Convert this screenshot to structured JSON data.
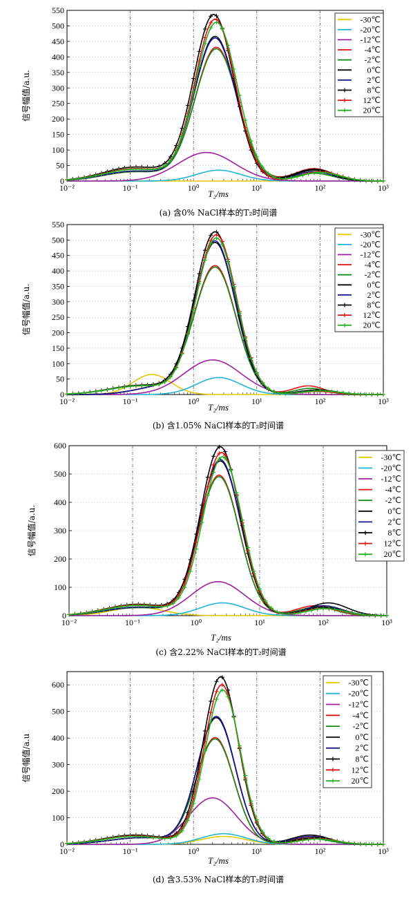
{
  "chart_data": [
    {
      "type": "line",
      "caption": "(a) 含0% NaCl样本的T₂时间谱",
      "ylabel": "信号幅值/a.u.",
      "xlabel": "T₂/ms",
      "xscale": "log",
      "xlim": [
        0.01,
        1000
      ],
      "ylim": [
        0,
        550
      ],
      "yticks": [
        0,
        50,
        100,
        150,
        200,
        250,
        300,
        350,
        400,
        450,
        500,
        550
      ],
      "xtick_labels": [
        "10⁻²",
        "10⁻¹",
        "10⁰",
        "10¹",
        "10²",
        "10³"
      ],
      "series": [
        {
          "name": "-30℃",
          "color": "#e6c800",
          "curves": []
        },
        {
          "name": "-20℃",
          "color": "#1fb3d6",
          "curves": [
            [
              2.5,
              35,
              0.35
            ]
          ]
        },
        {
          "name": "-12℃",
          "color": "#a01ea0",
          "curves": [
            [
              1.6,
              92,
              0.45
            ]
          ]
        },
        {
          "name": "-4℃",
          "color": "#e01010",
          "curves": [
            [
              2.3,
              430,
              0.34
            ],
            [
              0.12,
              30,
              0.5
            ],
            [
              80,
              40,
              0.3
            ]
          ]
        },
        {
          "name": "-2℃",
          "color": "#1a8a1a",
          "curves": [
            [
              2.3,
              425,
              0.34
            ],
            [
              0.12,
              30,
              0.5
            ],
            [
              80,
              25,
              0.3
            ]
          ]
        },
        {
          "name": "0℃",
          "color": "#000000",
          "curves": [
            [
              2.2,
              465,
              0.33
            ],
            [
              0.12,
              32,
              0.5
            ],
            [
              80,
              38,
              0.3
            ]
          ]
        },
        {
          "name": "2℃",
          "color": "#14148c",
          "curves": [
            [
              2.2,
              460,
              0.33
            ],
            [
              0.12,
              32,
              0.5
            ],
            [
              80,
              30,
              0.3
            ]
          ]
        },
        {
          "name": "8℃",
          "color": "#000000",
          "curves": [
            [
              2.1,
              535,
              0.32
            ],
            [
              0.12,
              45,
              0.5
            ],
            [
              80,
              35,
              0.3
            ]
          ]
        },
        {
          "name": "12℃",
          "color": "#e01010",
          "curves": [
            [
              2.2,
              520,
              0.32
            ],
            [
              0.12,
              40,
              0.5
            ],
            [
              100,
              30,
              0.3
            ]
          ]
        },
        {
          "name": "20℃",
          "color": "#22b022",
          "curves": [
            [
              2.3,
              510,
              0.33
            ],
            [
              0.12,
              38,
              0.5
            ],
            [
              100,
              28,
              0.3
            ]
          ]
        }
      ]
    },
    {
      "type": "line",
      "caption": "(b) 含1.05% NaCl样本的T₂时间谱",
      "ylabel": "信号幅值/a.u.",
      "xlabel": "T₂/ms",
      "xscale": "log",
      "xlim": [
        0.01,
        1000
      ],
      "ylim": [
        0,
        550
      ],
      "yticks": [
        0,
        50,
        100,
        150,
        200,
        250,
        300,
        350,
        400,
        450,
        500,
        550
      ],
      "xtick_labels": [
        "10⁻²",
        "10⁻¹",
        "10⁰",
        "10¹",
        "10²",
        "10³"
      ],
      "series": [
        {
          "name": "-30℃",
          "color": "#e6c800",
          "curves": [
            [
              0.22,
              65,
              0.3
            ]
          ]
        },
        {
          "name": "-20℃",
          "color": "#1fb3d6",
          "curves": [
            [
              2.5,
              55,
              0.35
            ]
          ]
        },
        {
          "name": "-12℃",
          "color": "#a01ea0",
          "curves": [
            [
              2.0,
              112,
              0.45
            ]
          ]
        },
        {
          "name": "-4℃",
          "color": "#e01010",
          "curves": [
            [
              2.2,
              415,
              0.33
            ],
            [
              0.3,
              25,
              0.4
            ],
            [
              65,
              28,
              0.25
            ]
          ]
        },
        {
          "name": "-2℃",
          "color": "#1a8a1a",
          "curves": [
            [
              2.2,
              410,
              0.33
            ],
            [
              0.3,
              25,
              0.4
            ],
            [
              70,
              20,
              0.25
            ]
          ]
        },
        {
          "name": "0℃",
          "color": "#000000",
          "curves": [
            [
              2.2,
              490,
              0.32
            ],
            [
              0.3,
              25,
              0.4
            ],
            [
              90,
              15,
              0.3
            ]
          ]
        },
        {
          "name": "2℃",
          "color": "#14148c",
          "curves": [
            [
              2.2,
              495,
              0.32
            ],
            [
              0.3,
              25,
              0.4
            ],
            [
              90,
              12,
              0.3
            ]
          ]
        },
        {
          "name": "8℃",
          "color": "#000000",
          "curves": [
            [
              2.2,
              525,
              0.32
            ],
            [
              0.15,
              30,
              0.5
            ],
            [
              90,
              10,
              0.3
            ]
          ]
        },
        {
          "name": "12℃",
          "color": "#e01010",
          "curves": [
            [
              2.3,
              515,
              0.32
            ],
            [
              0.15,
              28,
              0.5
            ],
            [
              90,
              10,
              0.3
            ]
          ]
        },
        {
          "name": "20℃",
          "color": "#22b022",
          "curves": [
            [
              2.3,
              505,
              0.32
            ],
            [
              0.15,
              28,
              0.5
            ],
            [
              100,
              12,
              0.3
            ]
          ]
        }
      ]
    },
    {
      "type": "line",
      "caption": "(c) 含2.22% NaCl样本的T₂时间谱",
      "ylabel": "信号幅值/a.u.",
      "xlabel": "T₂/ms",
      "xscale": "log",
      "xlim": [
        0.01,
        1000
      ],
      "ylim": [
        0,
        600
      ],
      "yticks": [
        0,
        100,
        200,
        300,
        400,
        500,
        600
      ],
      "xtick_labels": [
        "10⁻²",
        "10⁻¹",
        "10⁰",
        "10¹",
        "10²",
        "10³"
      ],
      "series": [
        {
          "name": "-30℃",
          "color": "#e6c800",
          "curves": [
            [
              0.12,
              30,
              0.4
            ]
          ]
        },
        {
          "name": "-20℃",
          "color": "#1fb3d6",
          "curves": [
            [
              2.6,
              45,
              0.35
            ]
          ]
        },
        {
          "name": "-12℃",
          "color": "#a01ea0",
          "curves": [
            [
              2.2,
              120,
              0.42
            ]
          ]
        },
        {
          "name": "-4℃",
          "color": "#e01010",
          "curves": [
            [
              2.3,
              495,
              0.32
            ],
            [
              0.12,
              28,
              0.5
            ],
            [
              75,
              35,
              0.3
            ]
          ]
        },
        {
          "name": "-2℃",
          "color": "#1a8a1a",
          "curves": [
            [
              2.3,
              490,
              0.32
            ],
            [
              0.12,
              28,
              0.5
            ],
            [
              80,
              30,
              0.3
            ]
          ]
        },
        {
          "name": "0℃",
          "color": "#000000",
          "curves": [
            [
              2.4,
              545,
              0.32
            ],
            [
              0.12,
              30,
              0.5
            ],
            [
              120,
              45,
              0.3
            ]
          ]
        },
        {
          "name": "2℃",
          "color": "#14148c",
          "curves": [
            [
              2.4,
              550,
              0.32
            ],
            [
              0.12,
              30,
              0.5
            ],
            [
              100,
              35,
              0.3
            ]
          ]
        },
        {
          "name": "8℃",
          "color": "#000000",
          "curves": [
            [
              2.4,
              595,
              0.31
            ],
            [
              0.12,
              40,
              0.5
            ],
            [
              100,
              30,
              0.3
            ]
          ]
        },
        {
          "name": "12℃",
          "color": "#e01010",
          "curves": [
            [
              2.5,
              575,
              0.31
            ],
            [
              0.12,
              38,
              0.5
            ],
            [
              100,
              25,
              0.3
            ]
          ]
        },
        {
          "name": "20℃",
          "color": "#22b022",
          "curves": [
            [
              2.6,
              560,
              0.31
            ],
            [
              0.12,
              36,
              0.5
            ],
            [
              110,
              25,
              0.3
            ]
          ]
        }
      ]
    },
    {
      "type": "line",
      "caption": "(d) 含3.53% NaCl样本的T₂时间谱",
      "ylabel": "信号幅值/a.u",
      "xlabel": "T₂/ms",
      "xscale": "log",
      "xlim": [
        0.01,
        1000
      ],
      "ylim": [
        0,
        650
      ],
      "yticks": [
        0,
        100,
        200,
        300,
        400,
        500,
        600
      ],
      "xtick_labels": [
        "10⁻²",
        "10⁻¹",
        "10⁰",
        "10¹",
        "10²",
        "10³"
      ],
      "series": [
        {
          "name": "-30℃",
          "color": "#e6c800",
          "curves": [
            [
              3.0,
              30,
              0.35
            ]
          ]
        },
        {
          "name": "-20℃",
          "color": "#1fb3d6",
          "curves": [
            [
              3.0,
              40,
              0.35
            ]
          ]
        },
        {
          "name": "-12℃",
          "color": "#a01ea0",
          "curves": [
            [
              2.0,
              175,
              0.38
            ]
          ]
        },
        {
          "name": "-4℃",
          "color": "#e01010",
          "curves": [
            [
              2.2,
              400,
              0.3
            ],
            [
              0.15,
              25,
              0.5
            ],
            [
              70,
              25,
              0.3
            ]
          ]
        },
        {
          "name": "-2℃",
          "color": "#1a8a1a",
          "curves": [
            [
              2.2,
              395,
              0.3
            ],
            [
              0.15,
              25,
              0.5
            ],
            [
              70,
              22,
              0.3
            ]
          ]
        },
        {
          "name": "0℃",
          "color": "#000000",
          "curves": [
            [
              2.3,
              475,
              0.3
            ],
            [
              0.15,
              25,
              0.5
            ],
            [
              70,
              35,
              0.3
            ]
          ]
        },
        {
          "name": "2℃",
          "color": "#14148c",
          "curves": [
            [
              2.3,
              480,
              0.3
            ],
            [
              0.15,
              25,
              0.5
            ],
            [
              70,
              30,
              0.3
            ]
          ]
        },
        {
          "name": "8℃",
          "color": "#000000",
          "curves": [
            [
              2.7,
              630,
              0.28
            ],
            [
              0.12,
              35,
              0.5
            ],
            [
              80,
              25,
              0.3
            ]
          ]
        },
        {
          "name": "12℃",
          "color": "#e01010",
          "curves": [
            [
              2.8,
              600,
              0.28
            ],
            [
              0.12,
              32,
              0.5
            ],
            [
              90,
              22,
              0.3
            ]
          ]
        },
        {
          "name": "20℃",
          "color": "#22b022",
          "curves": [
            [
              2.9,
              580,
              0.28
            ],
            [
              0.12,
              30,
              0.5
            ],
            [
              90,
              20,
              0.3
            ]
          ]
        }
      ]
    }
  ]
}
